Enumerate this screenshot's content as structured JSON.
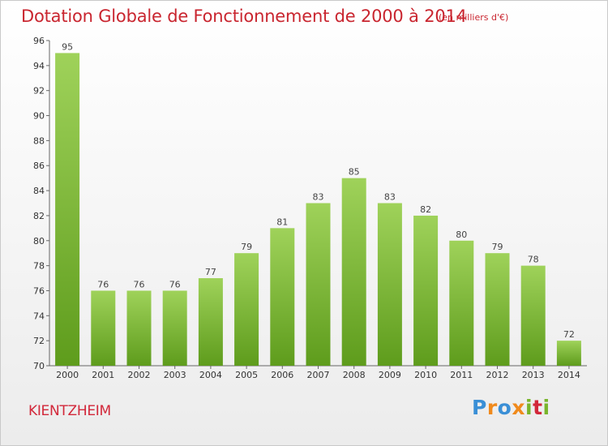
{
  "chart_data": {
    "type": "bar",
    "title": "Dotation Globale de Fonctionnement de 2000 à 2014",
    "subtitle": "(en milliers d'€)",
    "categories": [
      "2000",
      "2001",
      "2002",
      "2003",
      "2004",
      "2005",
      "2006",
      "2007",
      "2008",
      "2009",
      "2010",
      "2011",
      "2012",
      "2013",
      "2014"
    ],
    "values": [
      95,
      76,
      76,
      76,
      77,
      79,
      81,
      83,
      85,
      83,
      82,
      80,
      79,
      78,
      72
    ],
    "ylim": [
      70,
      96
    ],
    "yticks": [
      70,
      72,
      74,
      76,
      78,
      80,
      82,
      84,
      86,
      88,
      90,
      92,
      94,
      96
    ],
    "grid": false,
    "bar_color_top": "#9fd25a",
    "bar_color_bottom": "#5e9c1c"
  },
  "footer": {
    "commune": "KIENTZHEIM",
    "logo_letters": [
      {
        "ch": "P",
        "color": "#3a8fd6"
      },
      {
        "ch": "r",
        "color": "#f08a1c"
      },
      {
        "ch": "o",
        "color": "#3a8fd6"
      },
      {
        "ch": "x",
        "color": "#f08a1c"
      },
      {
        "ch": "i",
        "color": "#79b52b"
      },
      {
        "ch": "t",
        "color": "#d2283a"
      },
      {
        "ch": "i",
        "color": "#79b52b"
      }
    ]
  }
}
